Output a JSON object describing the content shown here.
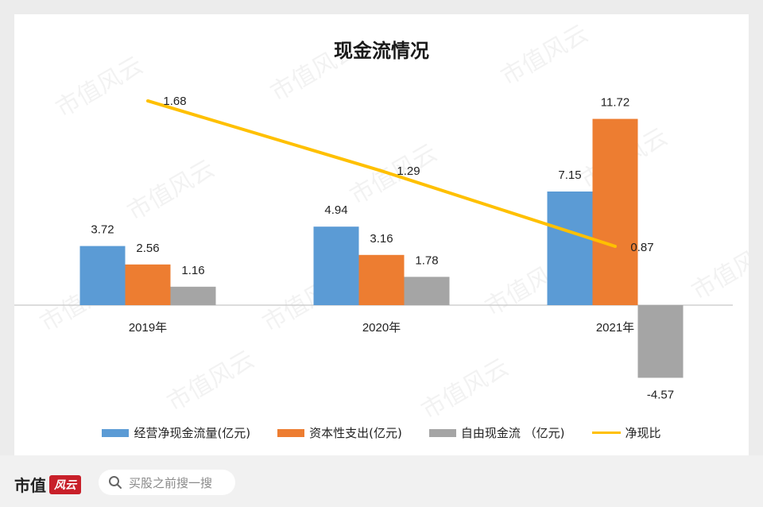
{
  "chart_data": {
    "type": "bar",
    "title": "现金流情况",
    "categories": [
      "2019年",
      "2020年",
      "2021年"
    ],
    "series": [
      {
        "name": "经营净现金流量(亿元)",
        "kind": "bar",
        "color": "#5b9bd5",
        "values": [
          3.72,
          4.94,
          7.15
        ]
      },
      {
        "name": "资本性支出(亿元)",
        "kind": "bar",
        "color": "#ed7d31",
        "values": [
          2.56,
          3.16,
          11.72
        ]
      },
      {
        "name": "自由现金流 （亿元)",
        "kind": "bar",
        "color": "#a5a5a5",
        "values": [
          1.16,
          1.78,
          -4.57
        ]
      },
      {
        "name": "净现比",
        "kind": "line",
        "color": "#ffc000",
        "values": [
          1.68,
          1.29,
          0.87
        ]
      }
    ],
    "data_labels": {
      "bars": [
        [
          "3.72",
          "2.56",
          "1.16"
        ],
        [
          "4.94",
          "3.16",
          "1.78"
        ],
        [
          "7.15",
          "11.72",
          "-4.57"
        ]
      ],
      "line": [
        "1.68",
        "1.29",
        "0.87"
      ]
    },
    "ylim_bar": [
      -6,
      14
    ],
    "legend_position": "bottom",
    "grid": false
  },
  "footer": {
    "brand": "市值",
    "badge": "风云",
    "search_placeholder": "买股之前搜一搜"
  },
  "watermark": "市值风云"
}
